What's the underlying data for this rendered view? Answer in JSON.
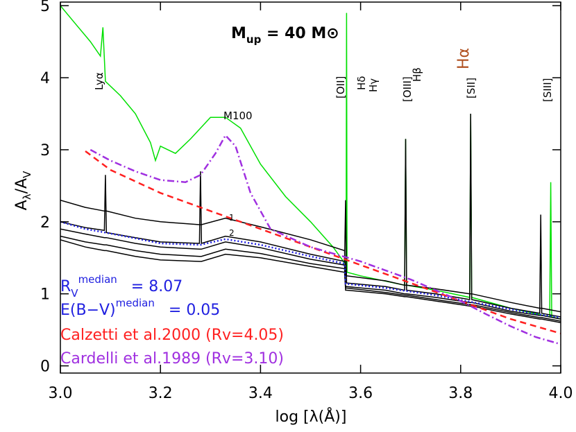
{
  "chart_data": {
    "type": "line",
    "title": {
      "main": "M",
      "sub": "up",
      "rest": " = 40 M⊙"
    },
    "y_label": {
      "a": "A",
      "lambda": "λ",
      "slash": "/A",
      "v": "V"
    },
    "x_label": "log [λ(Å)]",
    "xlim": [
      3.0,
      4.0
    ],
    "ylim": [
      -0.1,
      5.05
    ],
    "xticks": [
      {
        "value": 3.0,
        "label": "3.0"
      },
      {
        "value": 3.2,
        "label": "3.2"
      },
      {
        "value": 3.4,
        "label": "3.4"
      },
      {
        "value": 3.6,
        "label": "3.6"
      },
      {
        "value": 3.8,
        "label": "3.8"
      },
      {
        "value": 4.0,
        "label": "4.0"
      }
    ],
    "yticks": [
      0,
      1,
      2,
      3,
      4,
      5
    ],
    "series": [
      {
        "name": "M100",
        "color": "#00e000",
        "dash": "solid",
        "x": [
          3.0,
          3.03,
          3.06,
          3.08,
          3.085,
          3.09,
          3.12,
          3.15,
          3.18,
          3.19,
          3.2,
          3.23,
          3.26,
          3.3,
          3.33,
          3.36,
          3.4,
          3.45,
          3.5,
          3.545,
          3.571,
          3.572,
          3.573,
          3.6,
          3.688,
          3.69,
          3.692,
          3.75,
          3.818,
          3.82,
          3.822,
          3.9,
          3.978,
          3.98,
          3.982,
          4.0
        ],
        "values": [
          5.0,
          4.75,
          4.5,
          4.3,
          4.7,
          3.95,
          3.75,
          3.5,
          3.1,
          2.85,
          3.05,
          2.95,
          3.15,
          3.45,
          3.45,
          3.3,
          2.8,
          2.35,
          2.0,
          1.65,
          1.4,
          4.9,
          1.3,
          1.25,
          1.12,
          3.15,
          1.12,
          1.05,
          0.95,
          3.5,
          0.95,
          0.8,
          0.68,
          2.55,
          0.68,
          0.65
        ]
      },
      {
        "color": "#000000",
        "dash": "solid",
        "x": [
          3.0,
          3.05,
          3.088,
          3.09,
          3.092,
          3.15,
          3.2,
          3.278,
          3.28,
          3.282,
          3.33,
          3.4,
          3.5,
          3.568,
          3.57,
          3.572,
          3.65,
          3.688,
          3.69,
          3.692,
          3.75,
          3.818,
          3.82,
          3.822,
          3.9,
          3.958,
          3.96,
          3.962,
          4.0
        ],
        "values": [
          2.3,
          2.2,
          2.15,
          2.15,
          2.15,
          2.05,
          2.0,
          1.96,
          1.96,
          1.96,
          2.05,
          1.93,
          1.75,
          1.6,
          1.25,
          1.25,
          1.18,
          1.12,
          1.12,
          1.12,
          1.07,
          1.0,
          1.0,
          1.0,
          0.88,
          0.8,
          0.8,
          0.8,
          0.75
        ]
      },
      {
        "color": "#000000",
        "dash": "solid",
        "x": [
          3.0,
          3.05,
          3.088,
          3.09,
          3.092,
          3.15,
          3.2,
          3.278,
          3.28,
          3.282,
          3.33,
          3.4,
          3.5,
          3.568,
          3.57,
          3.572,
          3.65,
          3.688,
          3.69,
          3.692,
          3.75,
          3.818,
          3.82,
          3.822,
          3.9,
          3.958,
          3.96,
          3.962,
          4.0
        ],
        "values": [
          2.0,
          1.92,
          1.88,
          2.65,
          1.85,
          1.78,
          1.72,
          1.7,
          2.7,
          1.7,
          1.8,
          1.72,
          1.55,
          1.45,
          2.3,
          1.15,
          1.1,
          1.05,
          3.15,
          1.05,
          1.0,
          0.92,
          3.5,
          0.92,
          0.8,
          0.73,
          2.1,
          0.73,
          0.68
        ]
      },
      {
        "color": "#000000",
        "dash": "solid",
        "x": [
          3.0,
          3.05,
          3.088,
          3.09,
          3.092,
          3.15,
          3.2,
          3.278,
          3.28,
          3.282,
          3.33,
          3.4,
          3.5,
          3.568,
          3.57,
          3.572,
          3.65,
          3.688,
          3.69,
          3.692,
          3.75,
          3.818,
          3.82,
          3.822,
          3.9,
          3.958,
          3.96,
          3.962,
          4.0
        ],
        "values": [
          1.9,
          1.83,
          1.78,
          1.78,
          1.78,
          1.7,
          1.65,
          1.62,
          1.62,
          1.62,
          1.72,
          1.64,
          1.48,
          1.4,
          1.1,
          1.1,
          1.05,
          1.0,
          1.0,
          1.0,
          0.95,
          0.88,
          0.88,
          0.88,
          0.76,
          0.7,
          0.7,
          0.7,
          0.65
        ]
      },
      {
        "color": "#000000",
        "dash": "solid",
        "x": [
          3.0,
          3.05,
          3.088,
          3.09,
          3.092,
          3.15,
          3.2,
          3.278,
          3.28,
          3.282,
          3.33,
          3.4,
          3.5,
          3.568,
          3.57,
          3.572,
          3.65,
          3.688,
          3.69,
          3.692,
          3.75,
          3.818,
          3.82,
          3.822,
          3.9,
          3.958,
          3.96,
          3.962,
          4.0
        ],
        "values": [
          1.8,
          1.72,
          1.68,
          1.68,
          1.68,
          1.6,
          1.55,
          1.52,
          1.52,
          1.52,
          1.62,
          1.56,
          1.42,
          1.35,
          1.08,
          1.08,
          1.02,
          0.98,
          0.98,
          0.98,
          0.92,
          0.85,
          0.85,
          0.85,
          0.74,
          0.67,
          0.67,
          0.67,
          0.62
        ]
      },
      {
        "color": "#000000",
        "dash": "solid",
        "x": [
          3.0,
          3.05,
          3.088,
          3.09,
          3.092,
          3.15,
          3.2,
          3.278,
          3.28,
          3.282,
          3.33,
          3.4,
          3.5,
          3.568,
          3.57,
          3.572,
          3.65,
          3.688,
          3.69,
          3.692,
          3.75,
          3.818,
          3.82,
          3.822,
          3.9,
          3.958,
          3.96,
          3.962,
          4.0
        ],
        "values": [
          1.75,
          1.65,
          1.6,
          1.6,
          1.6,
          1.52,
          1.47,
          1.45,
          1.45,
          1.45,
          1.55,
          1.5,
          1.38,
          1.3,
          1.05,
          1.05,
          1.0,
          0.96,
          0.96,
          0.96,
          0.9,
          0.83,
          0.83,
          0.83,
          0.72,
          0.65,
          0.65,
          0.65,
          0.6
        ]
      },
      {
        "color": "#2020e0",
        "dash": "dotted",
        "x": [
          3.0,
          3.05,
          3.09,
          3.15,
          3.2,
          3.28,
          3.33,
          3.4,
          3.5,
          3.568,
          3.57,
          3.65,
          3.75,
          3.85,
          3.95,
          4.0
        ],
        "values": [
          2.0,
          1.9,
          1.85,
          1.77,
          1.7,
          1.68,
          1.76,
          1.68,
          1.52,
          1.42,
          1.14,
          1.08,
          0.98,
          0.85,
          0.72,
          0.67
        ]
      },
      {
        "name": "Calzetti et al.2000 (Rv=4.05)",
        "color": "#ff2020",
        "dash": "dashed",
        "x": [
          3.05,
          3.1,
          3.2,
          3.3,
          3.4,
          3.5,
          3.6,
          3.7,
          3.8,
          3.9,
          4.0
        ],
        "values": [
          2.98,
          2.72,
          2.4,
          2.15,
          1.9,
          1.65,
          1.4,
          1.15,
          0.9,
          0.65,
          0.45
        ]
      },
      {
        "name": "Cardelli et al.1989 (Rv=3.10)",
        "color": "#a030e0",
        "dash": "dashdot",
        "x": [
          3.06,
          3.1,
          3.15,
          3.2,
          3.25,
          3.28,
          3.31,
          3.33,
          3.35,
          3.38,
          3.42,
          3.5,
          3.6,
          3.7,
          3.8,
          3.85,
          3.9,
          3.95,
          4.0
        ],
        "values": [
          3.0,
          2.85,
          2.7,
          2.58,
          2.55,
          2.65,
          2.95,
          3.2,
          3.05,
          2.4,
          1.9,
          1.65,
          1.45,
          1.2,
          0.9,
          0.72,
          0.55,
          0.4,
          0.3
        ]
      }
    ],
    "median_texts": {
      "r": "R",
      "r_sub": "V",
      "r_sup": "median",
      "r_val": "= 8.07",
      "e": "E(B−V)",
      "e_sup": "median",
      "e_val": "= 0.05"
    },
    "annotations": [
      "Lyα",
      "[OII]",
      "Hδ",
      "Hγ",
      "[OIII]",
      "Hβ",
      "[SII]",
      "Hα",
      "[SIII]",
      "1",
      "2"
    ]
  }
}
